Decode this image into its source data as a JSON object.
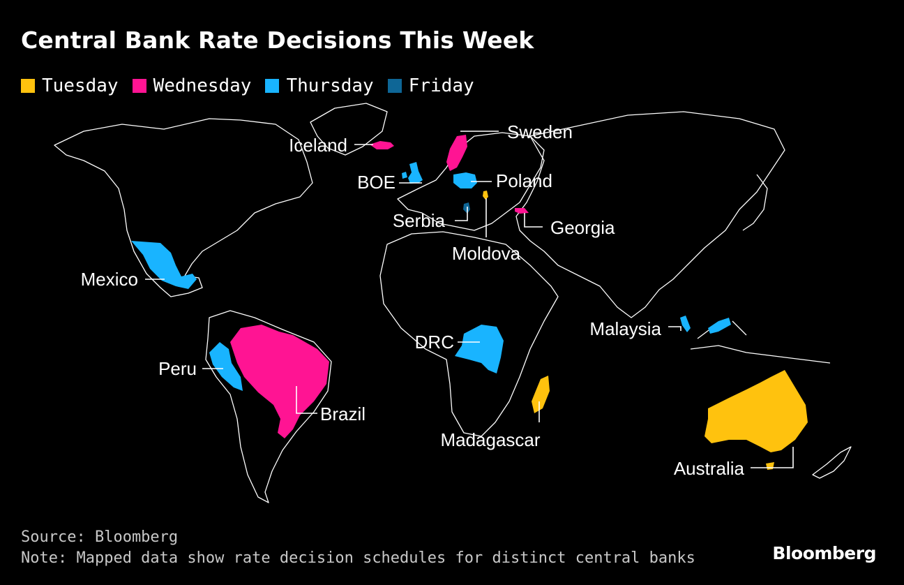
{
  "title": "Central Bank Rate Decisions This Week",
  "legend": [
    {
      "label": "Tuesday",
      "color": "#ffc20e"
    },
    {
      "label": "Wednesday",
      "color": "#ff1493"
    },
    {
      "label": "Thursday",
      "color": "#19b4ff"
    },
    {
      "label": "Friday",
      "color": "#0e6696"
    }
  ],
  "countries": {
    "iceland": {
      "label": "Iceland",
      "day": "Wednesday"
    },
    "sweden": {
      "label": "Sweden",
      "day": "Wednesday"
    },
    "boe": {
      "label": "BOE",
      "day": "Thursday"
    },
    "poland": {
      "label": "Poland",
      "day": "Thursday"
    },
    "serbia": {
      "label": "Serbia",
      "day": "Friday"
    },
    "moldova": {
      "label": "Moldova",
      "day": "Tuesday"
    },
    "georgia": {
      "label": "Georgia",
      "day": "Wednesday"
    },
    "mexico": {
      "label": "Mexico",
      "day": "Thursday"
    },
    "peru": {
      "label": "Peru",
      "day": "Thursday"
    },
    "brazil": {
      "label": "Brazil",
      "day": "Wednesday"
    },
    "drc": {
      "label": "DRC",
      "day": "Thursday"
    },
    "madagascar": {
      "label": "Madagascar",
      "day": "Tuesday"
    },
    "malaysia": {
      "label": "Malaysia",
      "day": "Thursday"
    },
    "australia": {
      "label": "Australia",
      "day": "Tuesday"
    }
  },
  "footer": {
    "source": "Source: Bloomberg",
    "note": "Note: Mapped data show rate decision schedules for distinct central banks"
  },
  "brand": "Bloomberg"
}
